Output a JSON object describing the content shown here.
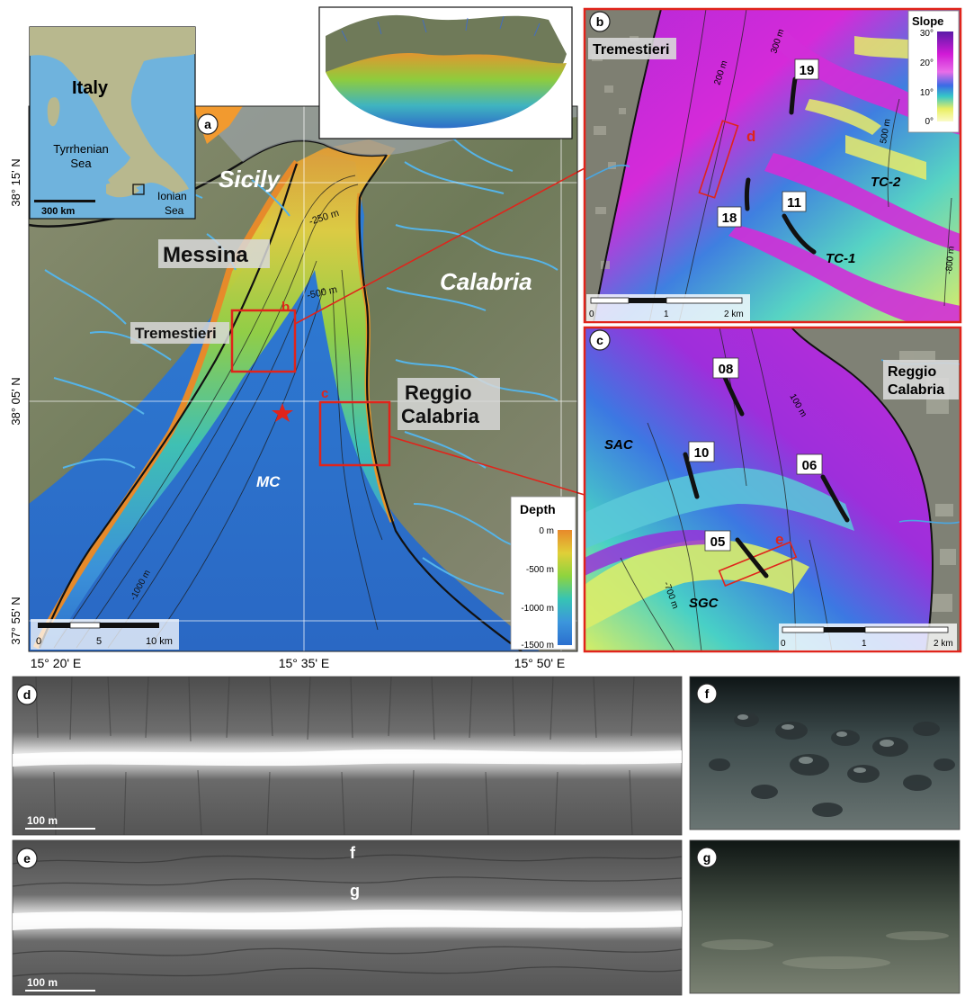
{
  "panel_a": {
    "letter": "a",
    "places": {
      "sicily": "Sicily",
      "calabria": "Calabria",
      "messina": "Messina",
      "tremestieri": "Tremestieri",
      "reggio_line1": "Reggio",
      "reggio_line2": "Calabria",
      "mc": "MC"
    },
    "box_labels": {
      "b": "b",
      "c": "c"
    },
    "contours": {
      "c250": "-250 m",
      "c500": "-500 m",
      "c1000": "-1000 m"
    },
    "scale": {
      "tick0": "0",
      "tick5": "5",
      "tick10": "10 km"
    },
    "lat_labels": [
      "38° 15' N",
      "38° 05' N",
      "37° 55' N"
    ],
    "lon_labels": [
      "15° 20' E",
      "15° 35' E",
      "15° 50' E"
    ],
    "depth_legend": {
      "title": "Depth",
      "ticks": [
        "0 m",
        "-500 m",
        "-1000 m",
        "-1500 m"
      ],
      "colors": [
        "#e8892a",
        "#e0cf38",
        "#8ed43e",
        "#36c4b4",
        "#3c96dc",
        "#2b6fcf"
      ]
    }
  },
  "inset": {
    "italy": "Italy",
    "tyrrhenian_1": "Tyrrhenian",
    "tyrrhenian_2": "Sea",
    "ionian_1": "Ionian",
    "ionian_2": "Sea",
    "scale": "300 km"
  },
  "panel_b": {
    "letter": "b",
    "place": "Tremestieri",
    "sites": [
      "19",
      "18",
      "11"
    ],
    "channels": [
      "TC-2",
      "TC-1"
    ],
    "box_label": "d",
    "contours": [
      "200 m",
      "300 m",
      "500 m",
      "-800 m"
    ],
    "scale": {
      "tick0": "0",
      "tick1": "1",
      "tick2": "2 km"
    },
    "slope_legend": {
      "title": "Slope",
      "ticks": [
        "30°",
        "20°",
        "10°",
        "0°"
      ],
      "colors": [
        "#5a1aa8",
        "#d11ad6",
        "#e86de8",
        "#3b6be6",
        "#36c7c7",
        "#e9ef63",
        "#fbfbc8"
      ]
    }
  },
  "panel_c": {
    "letter": "c",
    "place_line1": "Reggio",
    "place_line2": "Calabria",
    "sites": [
      "08",
      "10",
      "06",
      "05"
    ],
    "channels": [
      "SAC",
      "SGC"
    ],
    "box_label": "e",
    "contours": [
      "100 m",
      "-700 m"
    ],
    "scale": {
      "tick0": "0",
      "tick1": "1",
      "tick2": "2 km"
    }
  },
  "panel_d": {
    "letter": "d",
    "scale": "100 m"
  },
  "panel_e": {
    "letter": "e",
    "scale": "100 m",
    "marks": [
      "f",
      "g"
    ]
  },
  "panel_f": {
    "letter": "f"
  },
  "panel_g": {
    "letter": "g"
  },
  "colors": {
    "highlight": "#e0241b",
    "site_track": "#111111",
    "river": "#55b4e8"
  }
}
